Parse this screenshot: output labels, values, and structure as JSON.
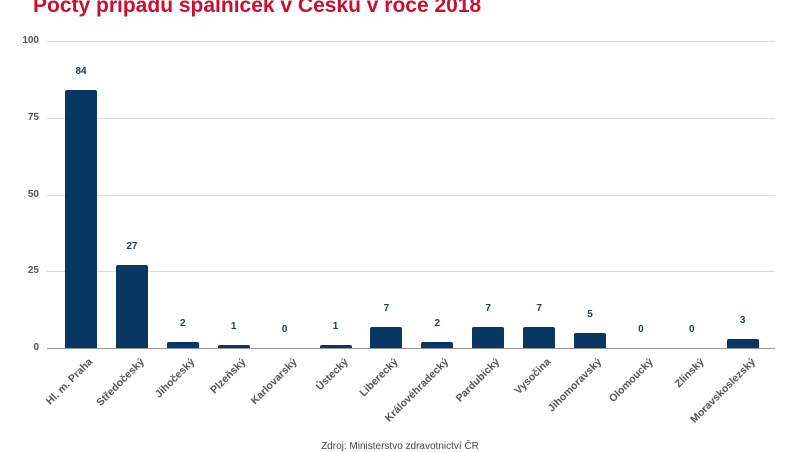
{
  "title": "Počty případů spalniček v Česku v roce 2018",
  "source": "Zdroj: Ministerstvo zdravotnictví ČR",
  "colors": {
    "title": "#c8102e",
    "bar": "#083763",
    "value_label": "#1c3d66"
  },
  "chart_data": {
    "type": "bar",
    "title": "Počty případů spalniček v Česku v roce 2018",
    "xlabel": "",
    "ylabel": "",
    "ylim": [
      0,
      100
    ],
    "yticks": [
      0,
      25,
      50,
      75,
      100
    ],
    "grid": true,
    "legend": "none",
    "data_labels": true,
    "categories": [
      "Hl. m. Praha",
      "Středočeský",
      "Jihočeský",
      "Plzeňský",
      "Karlovarský",
      "Ústecký",
      "Liberecký",
      "Královéhradecký",
      "Pardubický",
      "Vysočina",
      "Jihomoravský",
      "Olomoucký",
      "Zlínský",
      "Moravskoslezský"
    ],
    "values": [
      84,
      27,
      2,
      1,
      0,
      1,
      7,
      2,
      7,
      7,
      5,
      0,
      0,
      3
    ],
    "annotation": "Zdroj: Ministerstvo zdravotnictví ČR"
  }
}
